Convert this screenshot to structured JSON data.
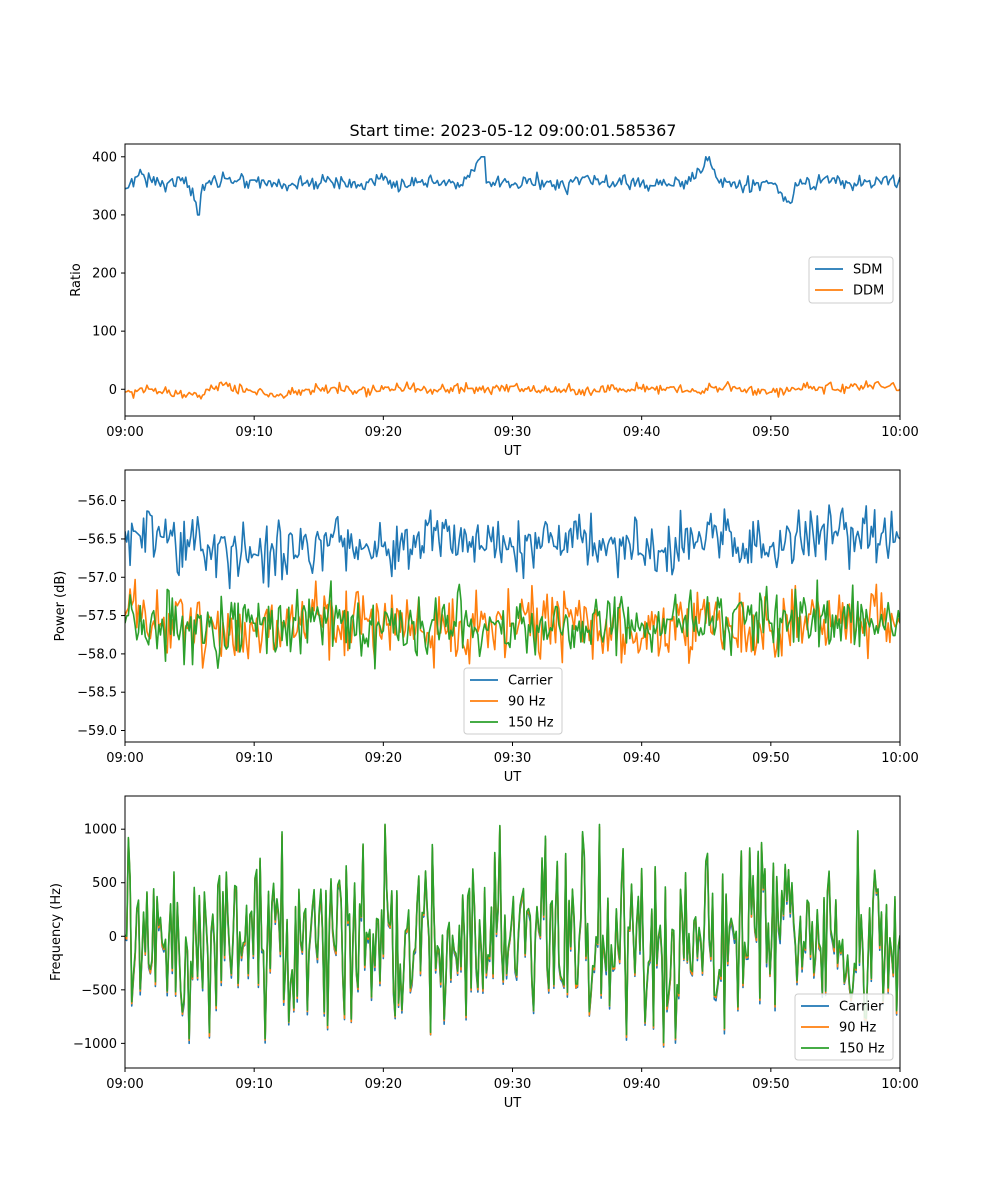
{
  "figure": {
    "title": "Start time: 2023-05-12 09:00:01.585367"
  },
  "chart_data": [
    {
      "type": "line",
      "title": "Start time: 2023-05-12 09:00:01.585367",
      "xlabel": "UT",
      "ylabel": "Ratio",
      "x_range": [
        "09:00",
        "10:00"
      ],
      "x_ticks": [
        "09:00",
        "09:10",
        "09:20",
        "09:30",
        "09:40",
        "09:50",
        "10:00"
      ],
      "ylim": [
        -46,
        422
      ],
      "y_ticks": [
        0,
        100,
        200,
        300,
        400
      ],
      "y_tick_labels": [
        "0",
        "100",
        "200",
        "300",
        "400"
      ],
      "grid": false,
      "legend_position": "center-right",
      "series": [
        {
          "name": "SDM",
          "color": "#1f77b4",
          "sampled": true,
          "knots": [
            [
              0,
              345
            ],
            [
              1,
              368
            ],
            [
              2,
              362
            ],
            [
              3,
              352
            ],
            [
              4,
              365
            ],
            [
              5,
              350
            ],
            [
              5.7,
              300
            ],
            [
              6,
              352
            ],
            [
              7,
              358
            ],
            [
              8,
              362
            ],
            [
              10,
              360
            ],
            [
              12,
              352
            ],
            [
              14,
              355
            ],
            [
              16,
              358
            ],
            [
              18,
              352
            ],
            [
              20,
              360
            ],
            [
              22,
              350
            ],
            [
              24,
              355
            ],
            [
              26,
              352
            ],
            [
              27.8,
              400
            ],
            [
              28,
              355
            ],
            [
              30,
              352
            ],
            [
              32,
              358
            ],
            [
              34,
              350
            ],
            [
              36,
              362
            ],
            [
              38,
              352
            ],
            [
              40,
              355
            ],
            [
              42,
              350
            ],
            [
              44,
              362
            ],
            [
              45.2,
              400
            ],
            [
              46,
              355
            ],
            [
              48,
              350
            ],
            [
              50,
              355
            ],
            [
              51.5,
              320
            ],
            [
              52,
              350
            ],
            [
              54,
              360
            ],
            [
              56,
              355
            ],
            [
              58,
              352
            ],
            [
              60,
              365
            ]
          ],
          "amplitude": 12,
          "range": [
            300,
            400
          ]
        },
        {
          "name": "DDM",
          "color": "#ff7f0e",
          "sampled": true,
          "knots": [
            [
              0,
              -5
            ],
            [
              2,
              0
            ],
            [
              4,
              -8
            ],
            [
              6,
              -10
            ],
            [
              7.5,
              12
            ],
            [
              8,
              5
            ],
            [
              10,
              -5
            ],
            [
              12,
              -8
            ],
            [
              14,
              0
            ],
            [
              16,
              2
            ],
            [
              18,
              -3
            ],
            [
              20,
              0
            ],
            [
              22,
              2
            ],
            [
              24,
              -2
            ],
            [
              26,
              3
            ],
            [
              28,
              0
            ],
            [
              30,
              5
            ],
            [
              32,
              -2
            ],
            [
              34,
              0
            ],
            [
              36,
              -5
            ],
            [
              38,
              2
            ],
            [
              40,
              0
            ],
            [
              42,
              3
            ],
            [
              44,
              -3
            ],
            [
              46,
              2
            ],
            [
              48,
              0
            ],
            [
              50,
              -5
            ],
            [
              52,
              0
            ],
            [
              54,
              3
            ],
            [
              56,
              2
            ],
            [
              58,
              10
            ],
            [
              60,
              0
            ]
          ],
          "amplitude": 9,
          "range": [
            -25,
            28
          ]
        }
      ]
    },
    {
      "type": "line",
      "xlabel": "UT",
      "ylabel": "Power (dB)",
      "x_range": [
        "09:00",
        "10:00"
      ],
      "x_ticks": [
        "09:00",
        "09:10",
        "09:20",
        "09:30",
        "09:40",
        "09:50",
        "10:00"
      ],
      "ylim": [
        -59.15,
        -55.6
      ],
      "y_ticks": [
        -59.0,
        -58.5,
        -58.0,
        -57.5,
        -57.0,
        -56.5,
        -56.0
      ],
      "y_tick_labels": [
        "−59.0",
        "−58.5",
        "−58.0",
        "−57.5",
        "−57.0",
        "−56.5",
        "−56.0"
      ],
      "grid": false,
      "legend_position": "lower-center",
      "series": [
        {
          "name": "Carrier",
          "color": "#1f77b4",
          "sampled": true,
          "knots": [
            [
              0,
              -56.4
            ],
            [
              5,
              -56.6
            ],
            [
              10,
              -56.7
            ],
            [
              15,
              -56.5
            ],
            [
              20,
              -56.6
            ],
            [
              25,
              -56.4
            ],
            [
              30,
              -56.6
            ],
            [
              35,
              -56.5
            ],
            [
              40,
              -56.7
            ],
            [
              45,
              -56.5
            ],
            [
              50,
              -56.6
            ],
            [
              55,
              -56.4
            ],
            [
              60,
              -56.5
            ]
          ],
          "amplitude": 0.35,
          "range": [
            -57.3,
            -55.72
          ]
        },
        {
          "name": "90 Hz",
          "color": "#ff7f0e",
          "sampled": true,
          "knots": [
            [
              0,
              -57.5
            ],
            [
              5,
              -57.6
            ],
            [
              10,
              -57.7
            ],
            [
              15,
              -57.5
            ],
            [
              20,
              -57.6
            ],
            [
              25,
              -57.7
            ],
            [
              30,
              -57.6
            ],
            [
              35,
              -57.5
            ],
            [
              40,
              -57.8
            ],
            [
              45,
              -57.6
            ],
            [
              50,
              -57.7
            ],
            [
              55,
              -57.5
            ],
            [
              60,
              -57.6
            ]
          ],
          "amplitude": 0.4,
          "range": [
            -58.7,
            -56.85
          ]
        },
        {
          "name": "150 Hz",
          "color": "#2ca02c",
          "sampled": true,
          "knots": [
            [
              0,
              -57.6
            ],
            [
              5,
              -57.7
            ],
            [
              10,
              -57.6
            ],
            [
              15,
              -57.5
            ],
            [
              20,
              -57.7
            ],
            [
              25,
              -57.5
            ],
            [
              30,
              -57.6
            ],
            [
              35,
              -57.7
            ],
            [
              40,
              -57.6
            ],
            [
              45,
              -57.5
            ],
            [
              50,
              -57.6
            ],
            [
              55,
              -57.5
            ],
            [
              60,
              -57.6
            ]
          ],
          "amplitude": 0.38,
          "range": [
            -58.7,
            -56.9
          ]
        }
      ]
    },
    {
      "type": "line",
      "xlabel": "UT",
      "ylabel": "Frequency (Hz)",
      "x_range": [
        "09:00",
        "10:00"
      ],
      "x_ticks": [
        "09:00",
        "09:10",
        "09:20",
        "09:30",
        "09:40",
        "09:50",
        "10:00"
      ],
      "ylim": [
        -1230,
        1310
      ],
      "y_ticks": [
        -1000,
        -500,
        0,
        500,
        1000
      ],
      "y_tick_labels": [
        "−1000",
        "−500",
        "0",
        "500",
        "1000"
      ],
      "grid": false,
      "legend_position": "lower-right",
      "series": [
        {
          "name": "Carrier",
          "color": "#1f77b4",
          "sampled": true,
          "knots": [
            [
              0,
              -30
            ],
            [
              60,
              -30
            ]
          ],
          "amplitude": 420,
          "range": [
            -1110,
            1150
          ]
        },
        {
          "name": "90 Hz",
          "color": "#ff7f0e",
          "sampled": true,
          "knots": [
            [
              0,
              -10
            ],
            [
              60,
              -10
            ]
          ],
          "amplitude": 420,
          "range": [
            -1090,
            1170
          ]
        },
        {
          "name": "150 Hz",
          "color": "#2ca02c",
          "sampled": true,
          "knots": [
            [
              0,
              10
            ],
            [
              60,
              10
            ]
          ],
          "amplitude": 420,
          "range": [
            -1070,
            1190
          ]
        }
      ]
    }
  ]
}
